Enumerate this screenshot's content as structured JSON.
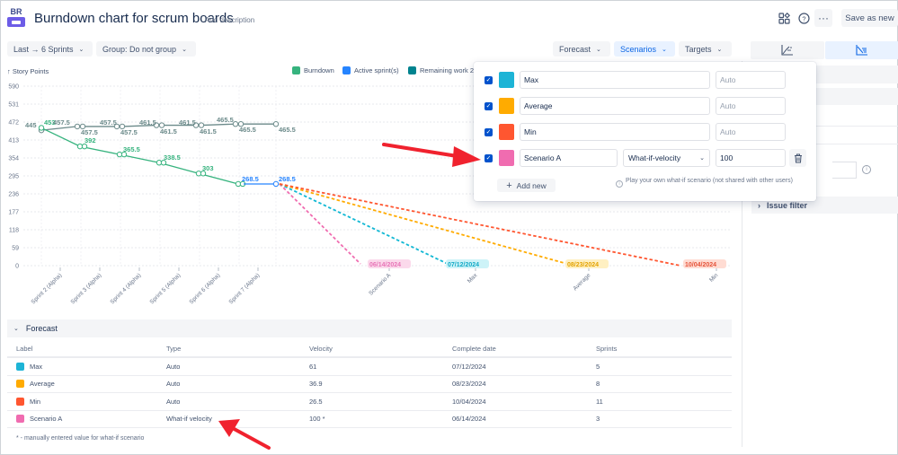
{
  "header": {
    "logo_text": "BR",
    "title": "Burndown chart for scrum boards",
    "add_description": "Add description",
    "icons": [
      "apps-icon",
      "help-icon",
      "more-icon"
    ],
    "save_as_new": "Save as new"
  },
  "toolbar": {
    "range_filter": "Last → 6 Sprints",
    "group_filter": "Group: Do not group",
    "forecast": "Forecast",
    "scenarios": "Scenarios",
    "targets": "Targets"
  },
  "chart": {
    "y_title": "↑ Story Points",
    "legend": [
      {
        "label": "Burndown",
        "color": "#36B37E"
      },
      {
        "label": "Active sprint(s)",
        "color": "#2684FF"
      },
      {
        "label": "Remaining work 2",
        "color": "#00838F"
      }
    ]
  },
  "chart_data": {
    "type": "line",
    "title": "Burndown chart for scrum boards",
    "ylabel": "Story Points",
    "xlabel": "",
    "ylim": [
      0,
      590
    ],
    "yticks": [
      0,
      59,
      118,
      177,
      236,
      295,
      354,
      413,
      472,
      531,
      590
    ],
    "categories": [
      "Sprint 2 (Alpha)",
      "Sprint 3 (Alpha)",
      "Sprint 4 (Alpha)",
      "Sprint 5 (Alpha)",
      "Sprint 6 (Alpha)",
      "Sprint 7 (Alpha)"
    ],
    "series": [
      {
        "name": "Remaining work",
        "color": "#6B8A8A",
        "points": [
          [
            0,
            445
          ],
          [
            1,
            457.5
          ],
          [
            1.3,
            457.5
          ],
          [
            2,
            457.5
          ],
          [
            2.3,
            457.5
          ],
          [
            3,
            461.5
          ],
          [
            3.3,
            461.5
          ],
          [
            4,
            461.5
          ],
          [
            4.3,
            461.5
          ],
          [
            5,
            465.5
          ],
          [
            5.3,
            465.5
          ],
          [
            6,
            465.5
          ]
        ],
        "labels": [
          "445",
          "457.5",
          "457.5",
          "457.5",
          "457.5",
          "461.5",
          "461.5",
          "461.5",
          "461.5",
          "465.5",
          "465.5",
          "465.5"
        ]
      },
      {
        "name": "Burndown",
        "color": "#36B37E",
        "points": [
          [
            0,
            453
          ],
          [
            1,
            392
          ],
          [
            2,
            365.5
          ],
          [
            3,
            338.5
          ],
          [
            4,
            303
          ],
          [
            5,
            268.5
          ]
        ],
        "labels": [
          "453",
          "392",
          "365.5",
          "338.5",
          "303",
          "268.5"
        ]
      },
      {
        "name": "Active sprint(s)",
        "color": "#2684FF",
        "points": [
          [
            5,
            268.5
          ],
          [
            6,
            268.5
          ]
        ],
        "labels": [
          "268.5"
        ]
      }
    ],
    "forecast_categories": [
      "Scenario A",
      "Max",
      "Average",
      "Min"
    ],
    "forecasts": [
      {
        "name": "Scenario A",
        "color": "#F06CB0",
        "end_date": "06/14/2024",
        "from": 268.5,
        "to": 0
      },
      {
        "name": "Max",
        "color": "#12B8D4",
        "end_date": "07/12/2024",
        "from": 268.5,
        "to": 0
      },
      {
        "name": "Average",
        "color": "#FFAB00",
        "end_date": "08/23/2024",
        "from": 268.5,
        "to": 0
      },
      {
        "name": "Min",
        "color": "#FF5630",
        "end_date": "10/04/2024",
        "from": 268.5,
        "to": 0
      }
    ],
    "grid": true,
    "legend_position": "top-right"
  },
  "scenarios_popover": {
    "rows": [
      {
        "checked": true,
        "color": "#1DB4D6",
        "name": "Max",
        "velocity_placeholder": "Auto"
      },
      {
        "checked": true,
        "color": "#FFAB00",
        "name": "Average",
        "velocity_placeholder": "Auto"
      },
      {
        "checked": true,
        "color": "#FF5630",
        "name": "Min",
        "velocity_placeholder": "Auto"
      },
      {
        "checked": true,
        "color": "#F06CB0",
        "name": "Scenario A",
        "type": "What-if-velocity",
        "velocity": "100"
      }
    ],
    "add_new": "Add new",
    "hint": "Play your own what-if scenario (not shared with other users)"
  },
  "sidebar": {
    "issue_filter": "Issue filter"
  },
  "forecast_table": {
    "title": "Forecast",
    "columns": [
      "Label",
      "Type",
      "Velocity",
      "Complete date",
      "Sprints"
    ],
    "rows": [
      {
        "color": "#1DB4D6",
        "label": "Max",
        "type": "Auto",
        "velocity": "61",
        "complete_date": "07/12/2024",
        "sprints": "5"
      },
      {
        "color": "#FFAB00",
        "label": "Average",
        "type": "Auto",
        "velocity": "36.9",
        "complete_date": "08/23/2024",
        "sprints": "8"
      },
      {
        "color": "#FF5630",
        "label": "Min",
        "type": "Auto",
        "velocity": "26.5",
        "complete_date": "10/04/2024",
        "sprints": "11"
      },
      {
        "color": "#F06CB0",
        "label": "Scenario A",
        "type": "What-if velocity",
        "velocity": "100 *",
        "complete_date": "06/14/2024",
        "sprints": "3"
      }
    ],
    "footnote": "* - manually entered value for what-if scenario"
  }
}
